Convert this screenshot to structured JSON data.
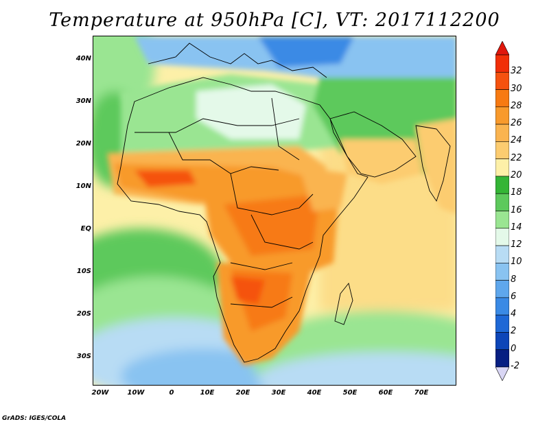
{
  "title": "Temperature at 950hPa [C], VT: 2017112200",
  "footer": "GrADS: IGES/COLA",
  "map": {
    "lon_labels": [
      "20W",
      "10W",
      "0",
      "10E",
      "20E",
      "30E",
      "40E",
      "50E",
      "60E",
      "70E"
    ],
    "lat_labels": [
      "40N",
      "30N",
      "20N",
      "10N",
      "EQ",
      "10S",
      "20S",
      "30S"
    ],
    "lon_range": [
      -22,
      80
    ],
    "lat_range": [
      -36,
      45
    ]
  },
  "colorbar": {
    "labels": [
      "32",
      "30",
      "28",
      "26",
      "24",
      "22",
      "20",
      "18",
      "16",
      "14",
      "12",
      "10",
      "8",
      "6",
      "4",
      "2",
      "0",
      "-2"
    ],
    "colors": [
      "#f12f07",
      "#f5520f",
      "#f77a12",
      "#f89a2c",
      "#fab450",
      "#fccc70",
      "#fdf0a8",
      "#34b536",
      "#5dc95c",
      "#9ae592",
      "#e4f9e9",
      "#b8dcf4",
      "#89c3f1",
      "#5fa7ec",
      "#3a8ae5",
      "#1e68d6",
      "#0d46b8",
      "#071f82"
    ],
    "top_color": "#e0170c",
    "bottom_color": "#d9d6f4"
  }
}
